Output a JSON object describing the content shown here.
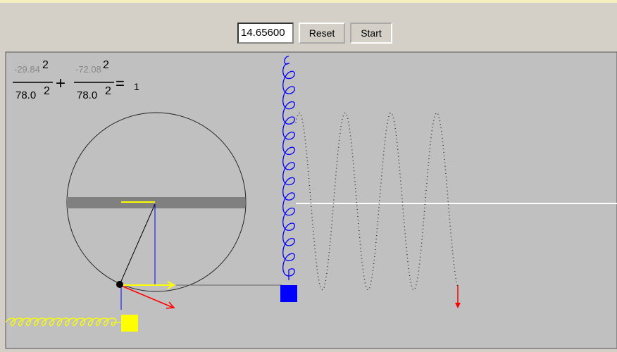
{
  "toolbar": {
    "input_value": "14.65600",
    "buttons": [
      "Reset",
      "Start"
    ]
  },
  "equation": {
    "term1": {
      "numerator": "-29.84",
      "num_exponent": "2",
      "denominator": "78.0",
      "den_exponent": "2"
    },
    "plus": "+",
    "term2": {
      "numerator": "-72.08",
      "num_exponent": "2",
      "denominator": "78.0",
      "den_exponent": "2"
    },
    "equals": "=",
    "result": "1"
  }
}
